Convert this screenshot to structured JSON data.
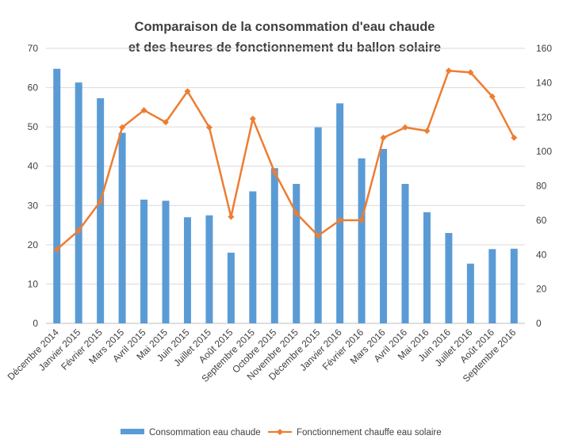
{
  "chart_data": {
    "type": "bar",
    "combo": "bar+line",
    "title": [
      "Comparaison de la consommation d'eau chaude",
      "et des heures de fonctionnement du ballon solaire"
    ],
    "categories": [
      "Décembre 2014",
      "Janvier 2015",
      "Février 2015",
      "Mars 2015",
      "Avril 2015",
      "Mai 2015",
      "Juin 2015",
      "Juillet 2015",
      "Août 2015",
      "Septembre 2015",
      "Octobre 2015",
      "Novembre 2015",
      "Décembre 2015",
      "Janvier 2016",
      "Février 2016",
      "Mars 2016",
      "Avril 2016",
      "Mai 2016",
      "Juin 2016",
      "Juillet 2016",
      "Août 2016",
      "Septembre 2016"
    ],
    "series": [
      {
        "name": "Consommation eau chaude",
        "type": "bar",
        "axis": "left",
        "color": "#5b9bd5",
        "values": [
          64.8,
          61.3,
          57.3,
          48.5,
          31.5,
          31.2,
          27,
          27.5,
          18,
          33.6,
          39.5,
          35.5,
          49.9,
          56,
          42,
          44.4,
          35.5,
          28.3,
          23,
          15.2,
          18.9,
          19
        ]
      },
      {
        "name": "Fonctionnement chauffe eau solaire",
        "type": "line",
        "axis": "right",
        "color": "#ed7d31",
        "marker": "diamond",
        "values": [
          43,
          54,
          71,
          114,
          124,
          117,
          135,
          114,
          62,
          119,
          88,
          64,
          51,
          60,
          60,
          108,
          114,
          112,
          147,
          146,
          132,
          108
        ]
      }
    ],
    "left_axis": {
      "min": 0,
      "max": 70,
      "ticks": [
        "0",
        "10",
        "20",
        "30",
        "40",
        "50",
        "60",
        "70"
      ]
    },
    "right_axis": {
      "min": 0,
      "max": 160,
      "ticks": [
        "0",
        "20",
        "40",
        "60",
        "80",
        "100",
        "120",
        "140",
        "160"
      ]
    },
    "grid": true,
    "legend_position": "bottom"
  }
}
